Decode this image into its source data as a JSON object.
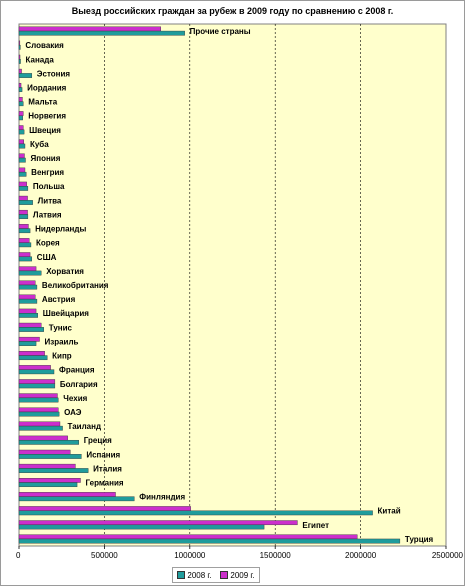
{
  "chart_data": {
    "type": "bar",
    "orientation": "horizontal",
    "title": "Выезд российских граждан за рубеж в 2009 году по сравнению с 2008 г.",
    "xlim": [
      0,
      2500000
    ],
    "xticks": [
      "0",
      "500000",
      "1000000",
      "1500000",
      "2000000",
      "2500000"
    ],
    "grid": true,
    "legend_position": "bottom",
    "categories": [
      "Прочие страны",
      "Словакия",
      "Канада",
      "Эстония",
      "Иордания",
      "Мальта",
      "Норвегия",
      "Швеция",
      "Куба",
      "Япония",
      "Венгрия",
      "Польша",
      "Литва",
      "Латвия",
      "Нидерланды",
      "Корея",
      "США",
      "Хорватия",
      "Великобритания",
      "Австрия",
      "Швейцария",
      "Тунис",
      "Израиль",
      "Кипр",
      "Франция",
      "Болгария",
      "Чехия",
      "ОАЭ",
      "Таиланд",
      "Греция",
      "Испания",
      "Италия",
      "Германия",
      "Финляндия",
      "Китай",
      "Египет",
      "Турция"
    ],
    "series": [
      {
        "name": "2008 г.",
        "color": "#1f9c9c",
        "values": [
          970000,
          8000,
          9000,
          75000,
          18000,
          25000,
          22000,
          30000,
          35000,
          38000,
          42000,
          52000,
          80000,
          52000,
          65000,
          70000,
          75000,
          130000,
          105000,
          105000,
          110000,
          145000,
          100000,
          165000,
          205000,
          210000,
          230000,
          235000,
          255000,
          350000,
          365000,
          405000,
          340000,
          675000,
          2070000,
          1435000,
          2230000
        ]
      },
      {
        "name": "2009 г.",
        "color": "#cc2fcc",
        "values": [
          830000,
          5000,
          6000,
          15000,
          12000,
          20000,
          25000,
          25000,
          28000,
          32000,
          35000,
          45000,
          50000,
          50000,
          55000,
          60000,
          65000,
          100000,
          95000,
          95000,
          100000,
          130000,
          120000,
          150000,
          185000,
          210000,
          225000,
          230000,
          240000,
          285000,
          300000,
          330000,
          360000,
          565000,
          1005000,
          1630000,
          1980000
        ]
      }
    ]
  }
}
